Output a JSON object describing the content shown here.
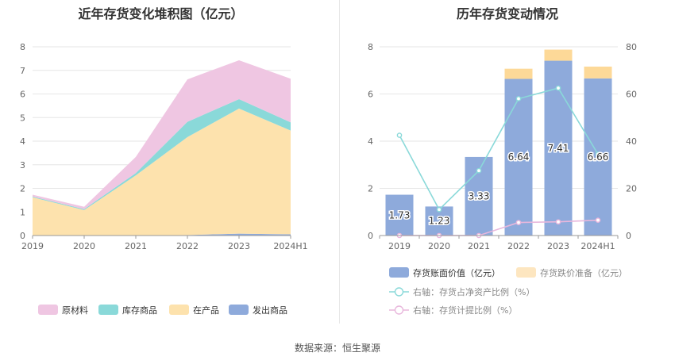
{
  "source": "数据来源：恒生聚源",
  "chart_data": [
    {
      "type": "area",
      "stacked": true,
      "title": "近年存货变化堆积图（亿元）",
      "categories": [
        "2019",
        "2020",
        "2021",
        "2022",
        "2023",
        "2024H1"
      ],
      "ylim": [
        0,
        8
      ],
      "yticks": [
        "0",
        "1",
        "2",
        "3",
        "4",
        "5",
        "6",
        "7",
        "8"
      ],
      "grid": true,
      "legend_position": "bottom",
      "series": [
        {
          "name": "发出商品",
          "color": "#8eaadb",
          "values": [
            0.0,
            0.0,
            0.0,
            0.02,
            0.08,
            0.05
          ]
        },
        {
          "name": "在产品",
          "color": "#fde2ad",
          "values": [
            1.62,
            1.08,
            2.55,
            4.15,
            5.3,
            4.4
          ]
        },
        {
          "name": "库存商品",
          "color": "#8ad9d9",
          "values": [
            0.03,
            0.04,
            0.1,
            0.65,
            0.4,
            0.35
          ]
        },
        {
          "name": "原材料",
          "color": "#efc6e2",
          "values": [
            0.08,
            0.1,
            0.68,
            1.8,
            1.65,
            1.85
          ]
        }
      ],
      "legend_order": [
        "原材料",
        "库存商品",
        "在产品",
        "发出商品"
      ]
    },
    {
      "type": "bar",
      "title": "历年存货变动情况",
      "categories": [
        "2019",
        "2020",
        "2021",
        "2022",
        "2023",
        "2024H1"
      ],
      "left_axis": {
        "ylim": [
          0,
          8
        ],
        "ticks": [
          "0",
          "2",
          "4",
          "6",
          "8"
        ]
      },
      "right_axis": {
        "ylim": [
          0,
          80
        ],
        "ticks": [
          "0",
          "20",
          "40",
          "60",
          "80"
        ]
      },
      "grid": true,
      "legend_position": "bottom",
      "bars": {
        "stacked": true,
        "series": [
          {
            "name": "存货账面价值（亿元）",
            "color": "#8eaadb",
            "values": [
              1.73,
              1.23,
              3.33,
              6.64,
              7.41,
              6.66
            ],
            "labels": [
              "1.73",
              "1.23",
              "3.33",
              "6.64",
              "7.41",
              "6.66"
            ]
          },
          {
            "name": "存货跌价准备（亿元）",
            "color": "#fdd998",
            "values": [
              0,
              0,
              0,
              0.43,
              0.47,
              0.5
            ]
          }
        ]
      },
      "lines": [
        {
          "name": "右轴：存货占净资产比例（%）",
          "color": "#8ad9d9",
          "axis": "right",
          "values": [
            42.5,
            11.0,
            27.5,
            58.0,
            62.5,
            34.5
          ]
        },
        {
          "name": "右轴：存货计提比例（%）",
          "color": "#e8b7dc",
          "axis": "right",
          "values": [
            0,
            0,
            0,
            5.5,
            5.8,
            6.5
          ]
        }
      ]
    }
  ]
}
